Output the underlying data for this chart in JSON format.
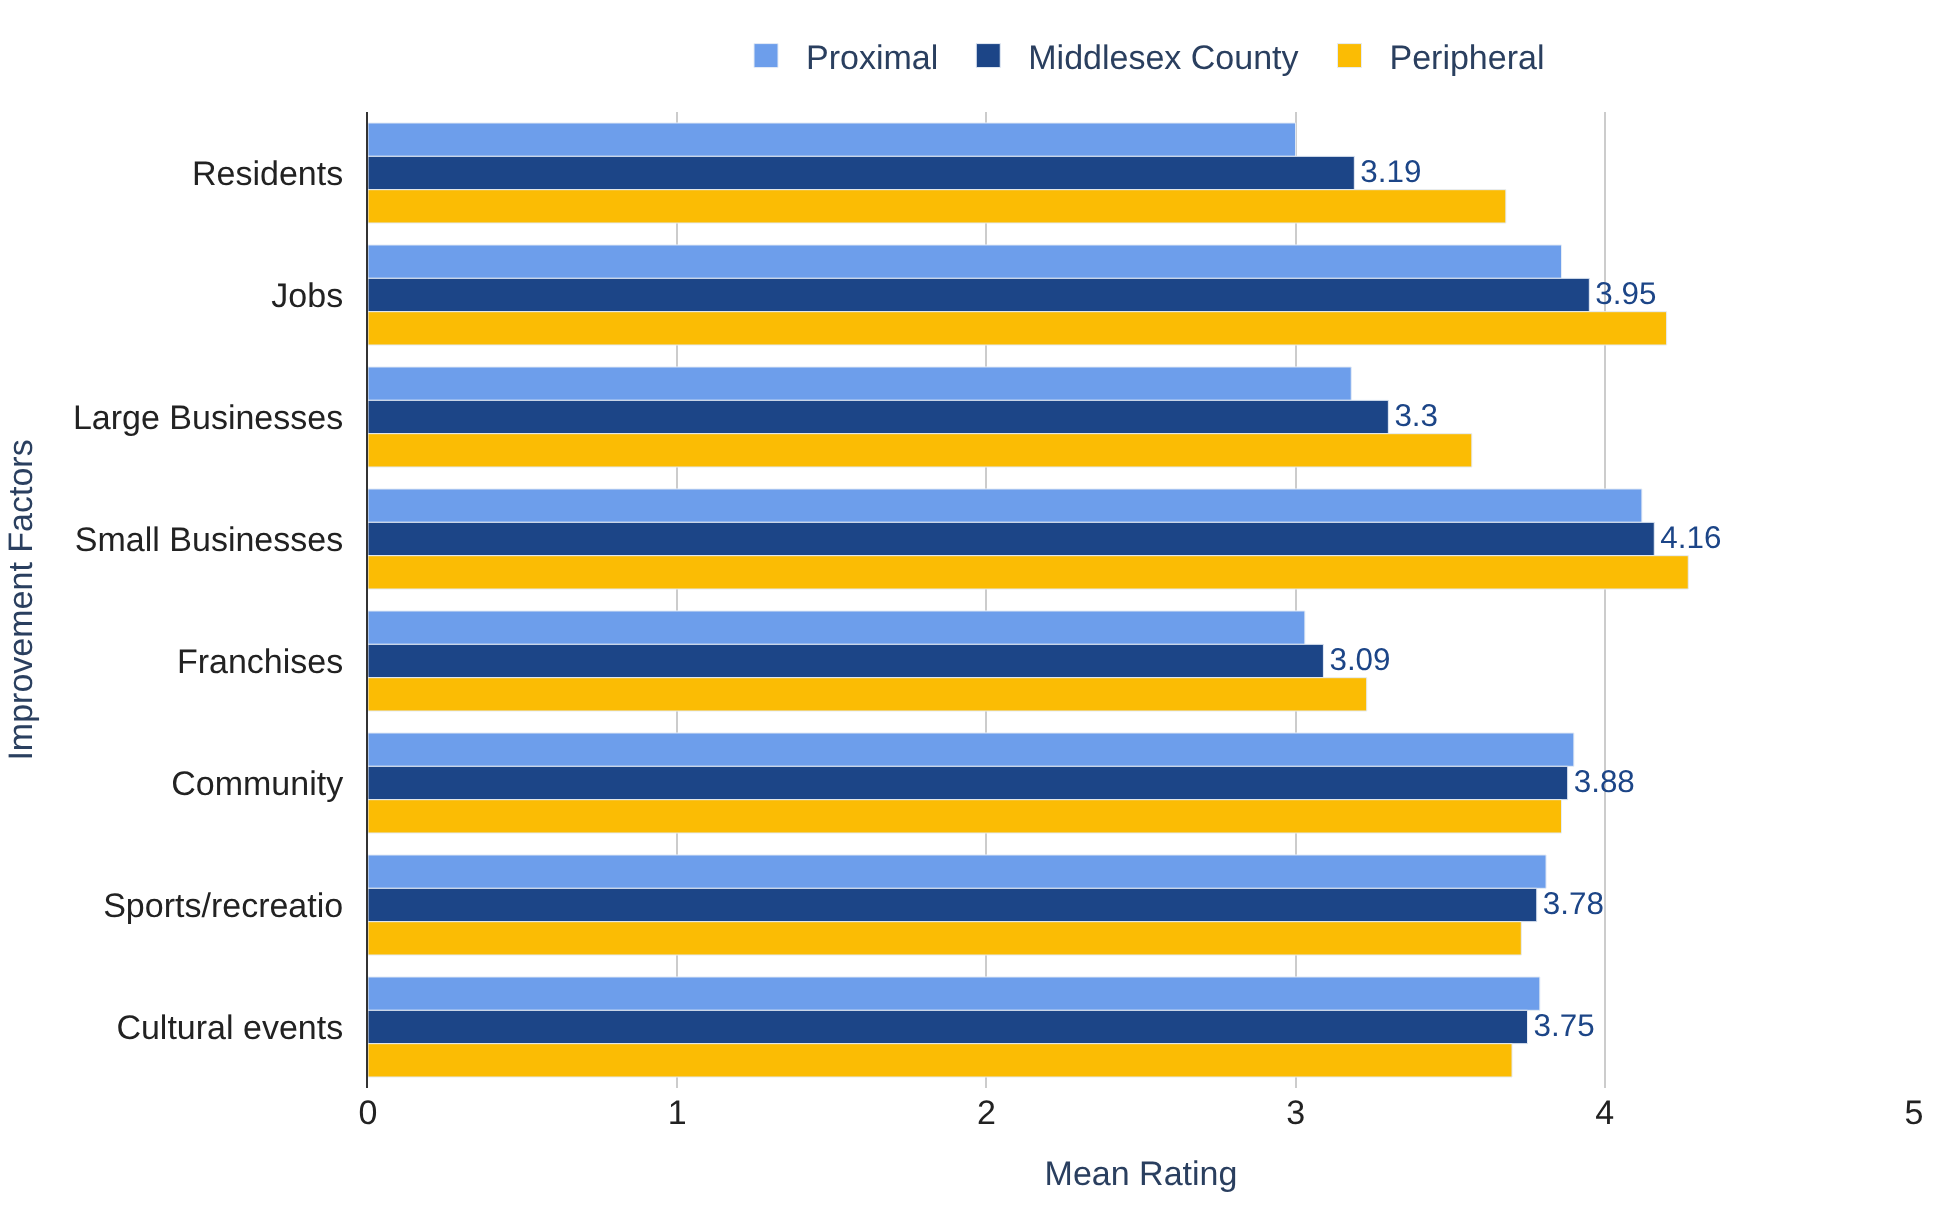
{
  "chart_data": {
    "type": "bar",
    "orientation": "horizontal",
    "xlabel": "Mean Rating",
    "ylabel": "Improvement Factors",
    "categories": [
      "Residents",
      "Jobs",
      "Large Businesses",
      "Small Businesses",
      "Franchises",
      "Community",
      "Sports/recreatio",
      "Cultural events"
    ],
    "series": [
      {
        "name": "Proximal",
        "color": "#6d9eeb",
        "values": [
          3.0,
          3.86,
          3.18,
          4.12,
          3.03,
          3.9,
          3.81,
          3.79
        ]
      },
      {
        "name": "Middlesex County",
        "color": "#1c4587",
        "values": [
          3.19,
          3.95,
          3.3,
          4.16,
          3.09,
          3.88,
          3.78,
          3.75
        ],
        "value_labels": [
          "3.19",
          "3.95",
          "3.3",
          "4.16",
          "3.09",
          "3.88",
          "3.78",
          "3.75"
        ]
      },
      {
        "name": "Peripheral",
        "color": "#fbbc04",
        "values": [
          3.68,
          4.2,
          3.57,
          4.27,
          3.23,
          3.86,
          3.73,
          3.7
        ]
      }
    ],
    "xlim": [
      0,
      5
    ],
    "xticks": [
      0,
      1,
      2,
      3,
      4,
      5
    ],
    "grid": "x",
    "legend": "top"
  }
}
